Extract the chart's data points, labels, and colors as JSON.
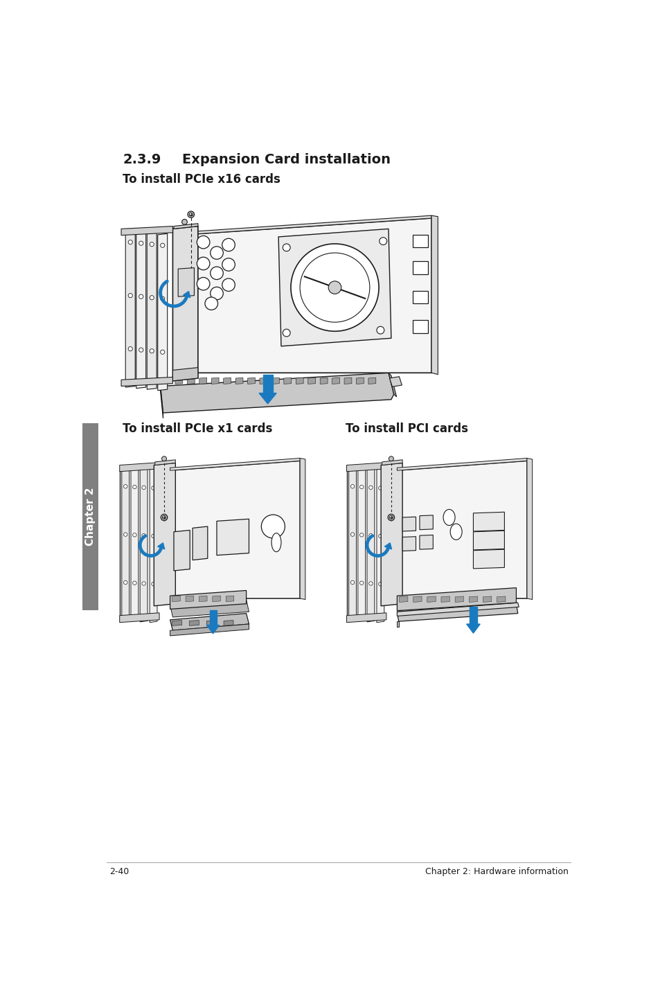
{
  "page_title_num": "2.3.9",
  "page_title_text": "Expansion Card installation",
  "section1_title": "To install PCIe x16 cards",
  "section2_title": "To install PCIe x1 cards",
  "section3_title": "To install PCI cards",
  "footer_left": "2-40",
  "footer_right": "Chapter 2: Hardware information",
  "bg_color": "#ffffff",
  "text_color": "#1a1a1a",
  "blue_color": "#1a7abf",
  "tab_color": "#808080",
  "tab_text": "Chapter 2",
  "line_color": "#1a1a1a",
  "light_gray": "#e8e8e8",
  "mid_gray": "#d0d0d0",
  "dark_gray": "#b0b0b0",
  "title_fontsize": 14,
  "heading_fontsize": 12,
  "footer_fontsize": 9,
  "tab_fontsize": 11
}
